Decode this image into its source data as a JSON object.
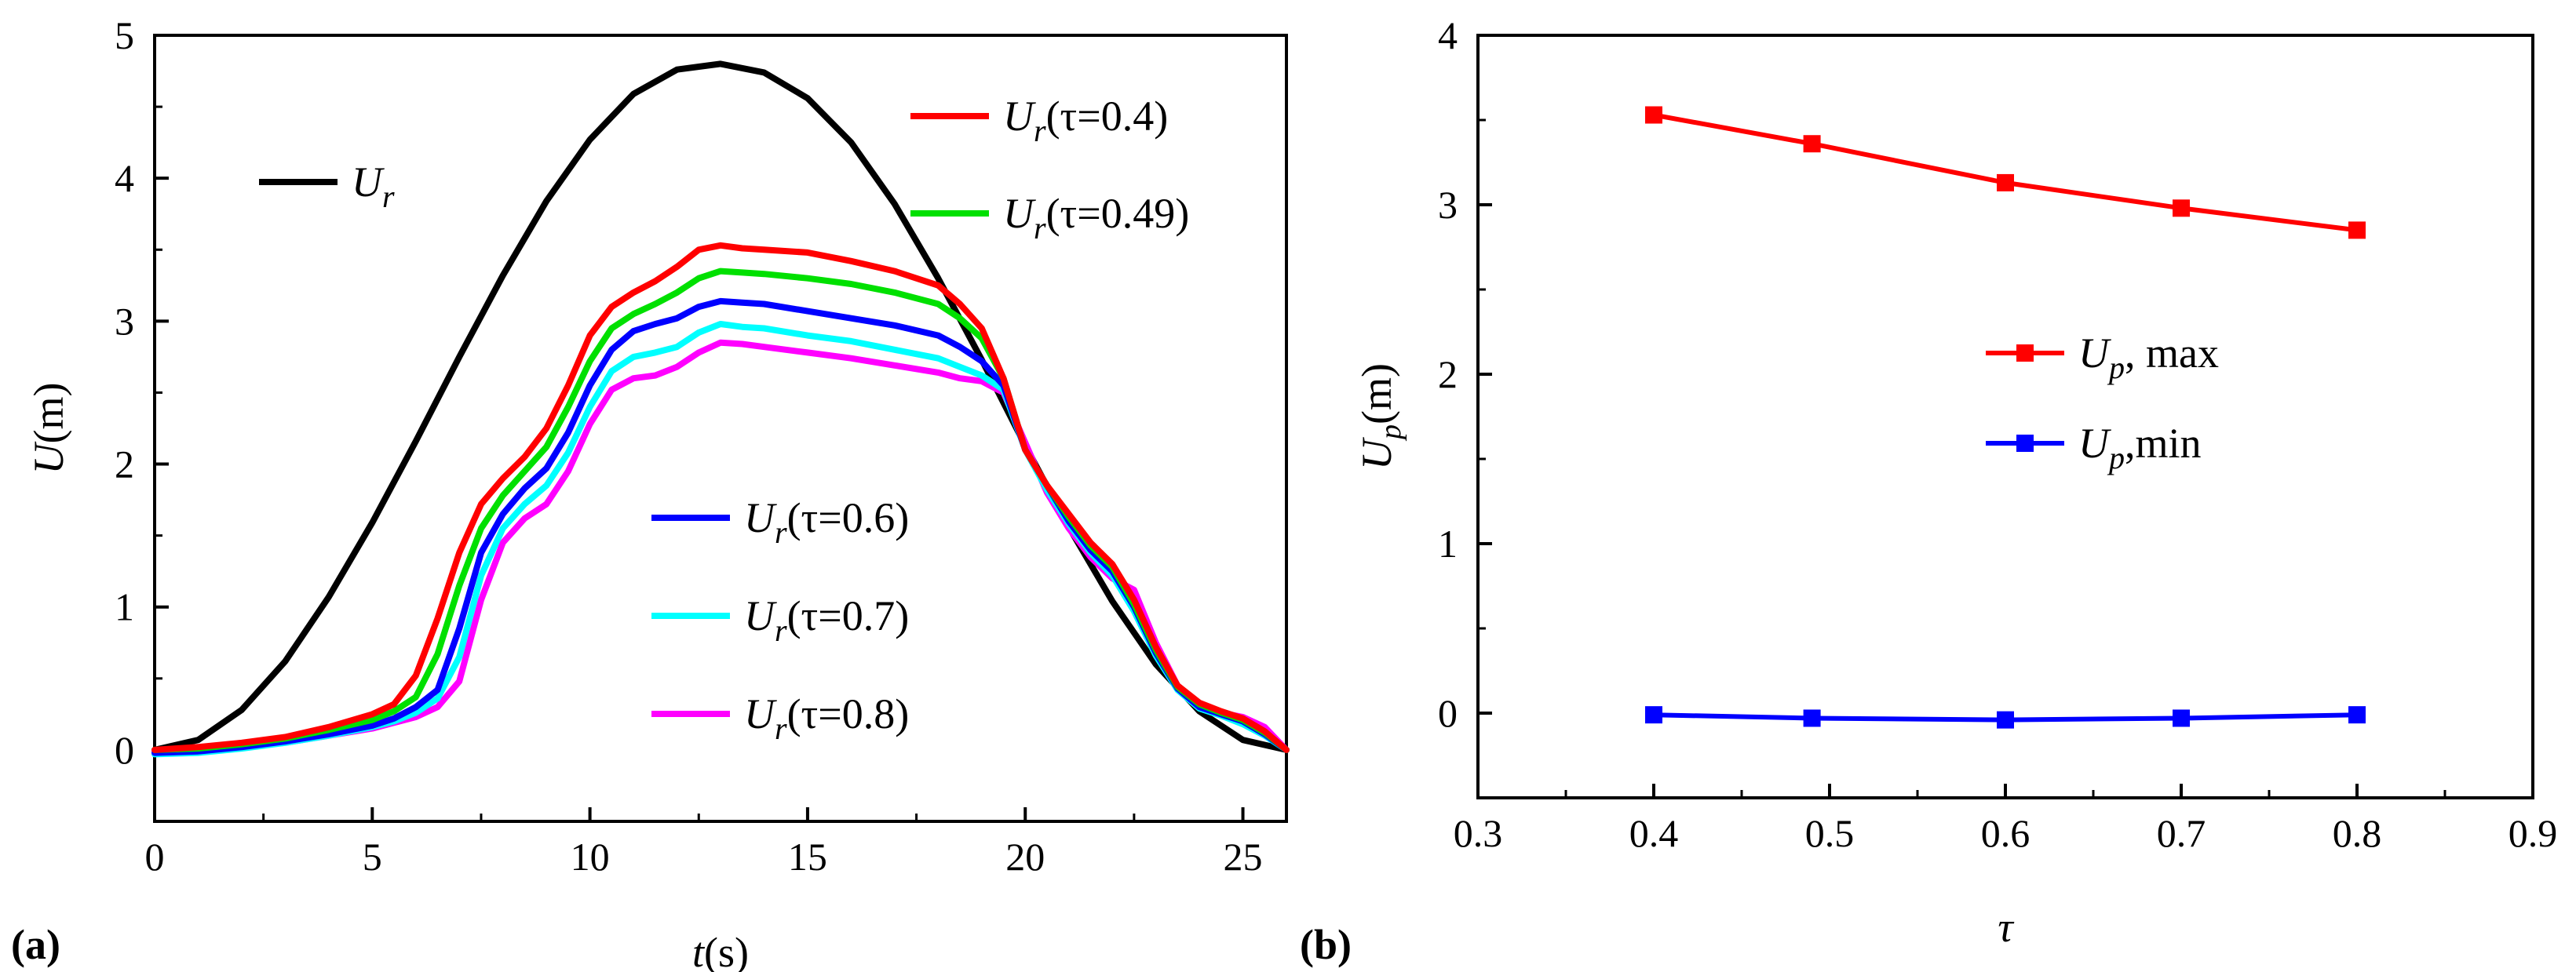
{
  "panels": [
    {
      "label": "(a)",
      "xlabel": {
        "var": "t",
        "unit": "(s)"
      },
      "ylabel": {
        "var": "U",
        "unit": "(m)"
      }
    },
    {
      "label": "(b)",
      "xlabel": {
        "var": "τ",
        "unit": ""
      },
      "ylabel": {
        "var": "U",
        "sub": "p",
        "unit": "(m)"
      }
    }
  ],
  "chart_data": [
    {
      "type": "line",
      "panel": "(a)",
      "xlim": [
        0,
        26
      ],
      "ylim": [
        -0.5,
        5
      ],
      "xticks": [
        0,
        5,
        10,
        15,
        20,
        25
      ],
      "yticks": [
        0,
        1,
        2,
        3,
        4,
        5
      ],
      "series": [
        {
          "name": "U_r",
          "legend": {
            "var": "U",
            "sub": "r",
            "tail": ""
          },
          "color": "#000000",
          "x": [
            0,
            1,
            2,
            3,
            4,
            5,
            6,
            7,
            8,
            9,
            10,
            11,
            12,
            13,
            14,
            15,
            16,
            17,
            18,
            19,
            20,
            21,
            22,
            23,
            24,
            25,
            26
          ],
          "y": [
            0,
            0.07,
            0.28,
            0.62,
            1.07,
            1.59,
            2.16,
            2.75,
            3.32,
            3.84,
            4.27,
            4.59,
            4.76,
            4.8,
            4.74,
            4.56,
            4.25,
            3.82,
            3.3,
            2.73,
            2.13,
            1.56,
            1.04,
            0.6,
            0.27,
            0.07,
            0
          ]
        },
        {
          "name": "U_r(τ=0.4)",
          "legend": {
            "var": "U",
            "sub": "r",
            "tail": "(τ=0.4)"
          },
          "color": "#ff0000",
          "x": [
            0,
            1,
            2,
            3,
            4,
            5,
            5.5,
            6,
            6.5,
            7,
            7.5,
            8,
            8.5,
            9,
            9.5,
            10,
            10.5,
            11,
            11.5,
            12,
            12.5,
            13,
            13.5,
            14,
            15,
            16,
            17,
            18,
            18.5,
            19,
            19.5,
            20,
            20.5,
            21,
            21.5,
            22,
            22.5,
            23,
            23.5,
            24,
            24.5,
            25,
            25.5,
            26
          ],
          "y": [
            0,
            0.02,
            0.05,
            0.09,
            0.16,
            0.25,
            0.32,
            0.52,
            0.92,
            1.38,
            1.72,
            1.9,
            2.05,
            2.25,
            2.55,
            2.9,
            3.1,
            3.2,
            3.28,
            3.38,
            3.5,
            3.53,
            3.51,
            3.5,
            3.48,
            3.42,
            3.35,
            3.25,
            3.12,
            2.95,
            2.6,
            2.1,
            1.85,
            1.65,
            1.45,
            1.3,
            1.05,
            0.72,
            0.45,
            0.33,
            0.27,
            0.22,
            0.13,
            0
          ]
        },
        {
          "name": "U_r(τ=0.49)",
          "legend": {
            "var": "U",
            "sub": "r",
            "tail": "(τ=0.49)"
          },
          "color": "#00e000",
          "x": [
            0,
            1,
            2,
            3,
            4,
            5,
            5.5,
            6,
            6.5,
            7,
            7.5,
            8,
            8.5,
            9,
            9.5,
            10,
            10.5,
            11,
            11.5,
            12,
            12.5,
            13,
            13.5,
            14,
            15,
            16,
            17,
            18,
            18.5,
            19,
            19.5,
            20,
            20.5,
            21,
            21.5,
            22,
            22.5,
            23,
            23.5,
            24,
            24.5,
            25,
            25.5,
            26
          ],
          "y": [
            0,
            0.01,
            0.04,
            0.08,
            0.14,
            0.21,
            0.27,
            0.37,
            0.67,
            1.15,
            1.55,
            1.78,
            1.95,
            2.12,
            2.4,
            2.72,
            2.95,
            3.05,
            3.12,
            3.2,
            3.3,
            3.35,
            3.34,
            3.33,
            3.3,
            3.26,
            3.2,
            3.12,
            3.02,
            2.88,
            2.6,
            2.1,
            1.85,
            1.63,
            1.43,
            1.28,
            1.02,
            0.7,
            0.44,
            0.32,
            0.26,
            0.21,
            0.12,
            0
          ]
        },
        {
          "name": "U_r(τ=0.6)",
          "legend": {
            "var": "U",
            "sub": "r",
            "tail": "(τ=0.6)"
          },
          "color": "#0000ff",
          "x": [
            0,
            1,
            2,
            3,
            4,
            5,
            5.5,
            6,
            6.5,
            7,
            7.5,
            8,
            8.5,
            9,
            9.5,
            10,
            10.5,
            11,
            11.5,
            12,
            12.5,
            13,
            13.5,
            14,
            15,
            16,
            17,
            18,
            18.5,
            19,
            19.5,
            20,
            20.5,
            21,
            21.5,
            22,
            22.5,
            23,
            23.5,
            24,
            24.5,
            25,
            25.5,
            26
          ],
          "y": [
            -0.02,
            -0.01,
            0.02,
            0.06,
            0.11,
            0.17,
            0.22,
            0.3,
            0.42,
            0.85,
            1.38,
            1.65,
            1.83,
            1.97,
            2.22,
            2.55,
            2.8,
            2.93,
            2.98,
            3.02,
            3.1,
            3.14,
            3.13,
            3.12,
            3.07,
            3.02,
            2.97,
            2.9,
            2.82,
            2.72,
            2.55,
            2.1,
            1.85,
            1.6,
            1.4,
            1.25,
            1.0,
            0.68,
            0.43,
            0.3,
            0.25,
            0.2,
            0.11,
            0
          ]
        },
        {
          "name": "U_r(τ=0.7)",
          "legend": {
            "var": "U",
            "sub": "r",
            "tail": "(τ=0.7)"
          },
          "color": "#00ffff",
          "x": [
            0,
            1,
            2,
            3,
            4,
            5,
            5.5,
            6,
            6.5,
            7,
            7.5,
            8,
            8.5,
            9,
            9.5,
            10,
            10.5,
            11,
            11.5,
            12,
            12.5,
            13,
            13.5,
            14,
            15,
            16,
            17,
            18,
            18.5,
            19,
            19.5,
            20,
            20.5,
            21,
            21.5,
            22,
            22.5,
            23,
            23.5,
            24,
            24.5,
            25,
            25.5,
            26
          ],
          "y": [
            -0.03,
            -0.02,
            0.01,
            0.05,
            0.1,
            0.16,
            0.2,
            0.26,
            0.36,
            0.65,
            1.22,
            1.55,
            1.72,
            1.85,
            2.08,
            2.4,
            2.65,
            2.75,
            2.78,
            2.82,
            2.92,
            2.98,
            2.96,
            2.95,
            2.9,
            2.86,
            2.8,
            2.74,
            2.68,
            2.62,
            2.52,
            2.1,
            1.82,
            1.58,
            1.38,
            1.22,
            0.97,
            0.66,
            0.42,
            0.29,
            0.24,
            0.18,
            0.1,
            0
          ]
        },
        {
          "name": "U_r(τ=0.8)",
          "legend": {
            "var": "U",
            "sub": "r",
            "tail": "(τ=0.8)"
          },
          "color": "#ff00ff",
          "x": [
            0,
            1,
            2,
            3,
            4,
            5,
            5.5,
            6,
            6.5,
            7,
            7.5,
            8,
            8.5,
            9,
            9.5,
            10,
            10.5,
            11,
            11.5,
            12,
            12.5,
            13,
            13.5,
            14,
            15,
            16,
            17,
            18,
            18.5,
            19,
            19.5,
            20,
            20.5,
            21,
            21.5,
            22,
            22.5,
            23,
            23.5,
            24,
            24.5,
            25,
            25.5,
            26
          ],
          "y": [
            -0.01,
            0.0,
            0.02,
            0.05,
            0.1,
            0.15,
            0.19,
            0.23,
            0.3,
            0.48,
            1.05,
            1.45,
            1.62,
            1.72,
            1.95,
            2.28,
            2.52,
            2.6,
            2.62,
            2.68,
            2.78,
            2.85,
            2.84,
            2.82,
            2.78,
            2.74,
            2.69,
            2.64,
            2.6,
            2.58,
            2.5,
            2.15,
            1.8,
            1.55,
            1.35,
            1.2,
            1.12,
            0.75,
            0.45,
            0.32,
            0.26,
            0.23,
            0.16,
            0
          ]
        }
      ]
    },
    {
      "type": "line",
      "panel": "(b)",
      "xlim": [
        0.3,
        0.9
      ],
      "ylim": [
        -0.5,
        4
      ],
      "xticks": [
        0.3,
        0.4,
        0.5,
        0.6,
        0.7,
        0.8,
        0.9
      ],
      "yticks": [
        0,
        1,
        2,
        3,
        4
      ],
      "x": [
        0.4,
        0.49,
        0.6,
        0.7,
        0.8
      ],
      "series": [
        {
          "name": "U_p, max",
          "legend": {
            "var": "U",
            "sub": "p",
            "tail": ", max"
          },
          "color": "#ff0000",
          "values": [
            3.53,
            3.36,
            3.13,
            2.98,
            2.85
          ]
        },
        {
          "name": "U_p,min",
          "legend": {
            "var": "U",
            "sub": "p",
            "tail": ",min"
          },
          "color": "#0000ff",
          "values": [
            -0.01,
            -0.03,
            -0.04,
            -0.03,
            -0.01
          ]
        }
      ]
    }
  ]
}
